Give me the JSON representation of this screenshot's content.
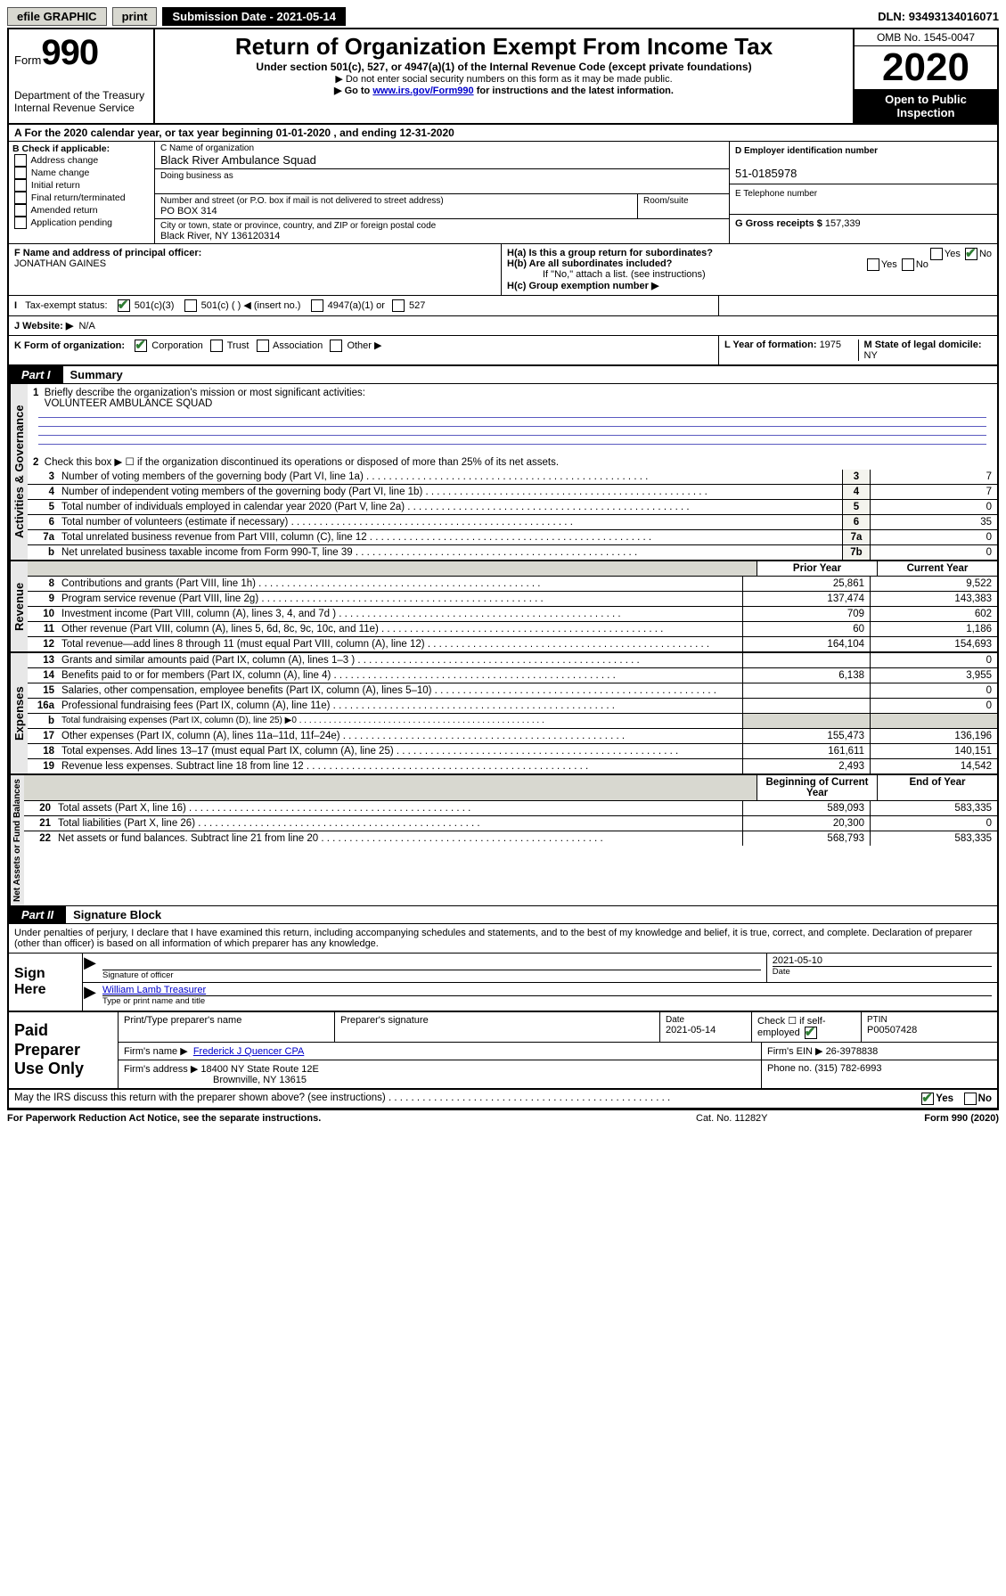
{
  "topbar": {
    "efile": "efile GRAPHIC",
    "print": "print",
    "submission_label": "Submission Date - ",
    "submission_date": "2021-05-14",
    "dln_label": "DLN: ",
    "dln": "93493134016071"
  },
  "header": {
    "form_label": "Form",
    "form_number": "990",
    "dept1": "Department of the Treasury",
    "dept2": "Internal Revenue Service",
    "title": "Return of Organization Exempt From Income Tax",
    "subtitle": "Under section 501(c), 527, or 4947(a)(1) of the Internal Revenue Code (except private foundations)",
    "warn1": "▶ Do not enter social security numbers on this form as it may be made public.",
    "warn2_pre": "▶ Go to ",
    "warn2_link": "www.irs.gov/Form990",
    "warn2_post": " for instructions and the latest information.",
    "omb": "OMB No. 1545-0047",
    "year": "2020",
    "insp1": "Open to Public",
    "insp2": "Inspection"
  },
  "calendar": {
    "text_a": "A For the 2020 calendar year, or tax year beginning ",
    "begin": "01-01-2020",
    "text_b": " , and ending ",
    "end": "12-31-2020"
  },
  "box_b": {
    "title": "B Check if applicable:",
    "opts": [
      "Address change",
      "Name change",
      "Initial return",
      "Final return/terminated",
      "Amended return",
      "Application pending"
    ]
  },
  "box_c": {
    "name_label": "C Name of organization",
    "name": "Black River Ambulance Squad",
    "dba_label": "Doing business as",
    "addr_label": "Number and street (or P.O. box if mail is not delivered to street address)",
    "room_label": "Room/suite",
    "addr": "PO BOX 314",
    "city_label": "City or town, state or province, country, and ZIP or foreign postal code",
    "city": "Black River, NY  136120314"
  },
  "box_d": {
    "label": "D Employer identification number",
    "value": "51-0185978"
  },
  "box_e": {
    "label": "E Telephone number",
    "value": ""
  },
  "box_g": {
    "label": "G Gross receipts $ ",
    "value": "157,339"
  },
  "box_f": {
    "label": "F Name and address of principal officer:",
    "name": "JONATHAN GAINES"
  },
  "box_h": {
    "ha": "H(a)  Is this a group return for subordinates?",
    "hb": "H(b)  Are all subordinates included?",
    "hb_note": "If \"No,\" attach a list. (see instructions)",
    "hc": "H(c)  Group exemption number ▶",
    "yes": "Yes",
    "no": "No"
  },
  "box_i": {
    "label": "Tax-exempt status:",
    "o1": "501(c)(3)",
    "o2": "501(c) (  ) ◀ (insert no.)",
    "o3": "4947(a)(1) or",
    "o4": "527"
  },
  "box_j": {
    "label": "J   Website: ▶",
    "value": "N/A"
  },
  "box_k": {
    "label": "K Form of organization:",
    "o1": "Corporation",
    "o2": "Trust",
    "o3": "Association",
    "o4": "Other ▶"
  },
  "box_l": {
    "label": "L Year of formation: ",
    "value": "1975"
  },
  "box_m": {
    "label": "M State of legal domicile: ",
    "value": "NY"
  },
  "part1": {
    "tab": "Part I",
    "title": "Summary",
    "sections": {
      "gov": "Activities & Governance",
      "rev": "Revenue",
      "exp": "Expenses",
      "net": "Net Assets or Fund Balances"
    },
    "q1_label": "Briefly describe the organization's mission or most significant activities:",
    "q1_value": "VOLUNTEER AMBULANCE SQUAD",
    "q2": "Check this box ▶ ☐  if the organization discontinued its operations or disposed of more than 25% of its net assets.",
    "lines_gov": [
      {
        "n": "3",
        "t": "Number of voting members of the governing body (Part VI, line 1a)",
        "box": "3",
        "v": "7"
      },
      {
        "n": "4",
        "t": "Number of independent voting members of the governing body (Part VI, line 1b)",
        "box": "4",
        "v": "7"
      },
      {
        "n": "5",
        "t": "Total number of individuals employed in calendar year 2020 (Part V, line 2a)",
        "box": "5",
        "v": "0"
      },
      {
        "n": "6",
        "t": "Total number of volunteers (estimate if necessary)",
        "box": "6",
        "v": "35"
      },
      {
        "n": "7a",
        "t": "Total unrelated business revenue from Part VIII, column (C), line 12",
        "box": "7a",
        "v": "0"
      },
      {
        "n": "b",
        "t": "Net unrelated business taxable income from Form 990-T, line 39",
        "box": "7b",
        "v": "0"
      }
    ],
    "col_prior": "Prior Year",
    "col_current": "Current Year",
    "lines_rev": [
      {
        "n": "8",
        "t": "Contributions and grants (Part VIII, line 1h)",
        "p": "25,861",
        "c": "9,522"
      },
      {
        "n": "9",
        "t": "Program service revenue (Part VIII, line 2g)",
        "p": "137,474",
        "c": "143,383"
      },
      {
        "n": "10",
        "t": "Investment income (Part VIII, column (A), lines 3, 4, and 7d )",
        "p": "709",
        "c": "602"
      },
      {
        "n": "11",
        "t": "Other revenue (Part VIII, column (A), lines 5, 6d, 8c, 9c, 10c, and 11e)",
        "p": "60",
        "c": "1,186"
      },
      {
        "n": "12",
        "t": "Total revenue—add lines 8 through 11 (must equal Part VIII, column (A), line 12)",
        "p": "164,104",
        "c": "154,693"
      }
    ],
    "lines_exp": [
      {
        "n": "13",
        "t": "Grants and similar amounts paid (Part IX, column (A), lines 1–3 )",
        "p": "",
        "c": "0"
      },
      {
        "n": "14",
        "t": "Benefits paid to or for members (Part IX, column (A), line 4)",
        "p": "6,138",
        "c": "3,955"
      },
      {
        "n": "15",
        "t": "Salaries, other compensation, employee benefits (Part IX, column (A), lines 5–10)",
        "p": "",
        "c": "0"
      },
      {
        "n": "16a",
        "t": "Professional fundraising fees (Part IX, column (A), line 11e)",
        "p": "",
        "c": "0"
      },
      {
        "n": "b",
        "t": "Total fundraising expenses (Part IX, column (D), line 25) ▶0",
        "p": null,
        "c": null,
        "shaded": true,
        "small": true
      },
      {
        "n": "17",
        "t": "Other expenses (Part IX, column (A), lines 11a–11d, 11f–24e)",
        "p": "155,473",
        "c": "136,196"
      },
      {
        "n": "18",
        "t": "Total expenses. Add lines 13–17 (must equal Part IX, column (A), line 25)",
        "p": "161,611",
        "c": "140,151"
      },
      {
        "n": "19",
        "t": "Revenue less expenses. Subtract line 18 from line 12",
        "p": "2,493",
        "c": "14,542"
      }
    ],
    "col_begin": "Beginning of Current Year",
    "col_end": "End of Year",
    "lines_net": [
      {
        "n": "20",
        "t": "Total assets (Part X, line 16)",
        "p": "589,093",
        "c": "583,335"
      },
      {
        "n": "21",
        "t": "Total liabilities (Part X, line 26)",
        "p": "20,300",
        "c": "0"
      },
      {
        "n": "22",
        "t": "Net assets or fund balances. Subtract line 21 from line 20",
        "p": "568,793",
        "c": "583,335"
      }
    ]
  },
  "part2": {
    "tab": "Part II",
    "title": "Signature Block",
    "decl": "Under penalties of perjury, I declare that I have examined this return, including accompanying schedules and statements, and to the best of my knowledge and belief, it is true, correct, and complete. Declaration of preparer (other than officer) is based on all information of which preparer has any knowledge."
  },
  "sign": {
    "here": "Sign Here",
    "sig_label": "Signature of officer",
    "date_label": "Date",
    "date": "2021-05-10",
    "name": "William Lamb Treasurer",
    "name_label": "Type or print name and title"
  },
  "paid": {
    "left": "Paid Preparer Use Only",
    "h1": "Print/Type preparer's name",
    "h2": "Preparer's signature",
    "h3_label": "Date",
    "h3": "2021-05-14",
    "h4_label": "Check ☐ if self-employed",
    "h5_label": "PTIN",
    "h5": "P00507428",
    "firm_name_label": "Firm's name    ▶",
    "firm_name": "Frederick J Quencer CPA",
    "firm_ein_label": "Firm's EIN ▶",
    "firm_ein": "26-3978838",
    "firm_addr_label": "Firm's address ▶",
    "firm_addr1": "18400 NY State Route 12E",
    "firm_addr2": "Brownville, NY  13615",
    "phone_label": "Phone no. ",
    "phone": "(315) 782-6993"
  },
  "discuss": {
    "text": "May the IRS discuss this return with the preparer shown above? (see instructions)",
    "yes": "Yes",
    "no": "No"
  },
  "footer": {
    "left": "For Paperwork Reduction Act Notice, see the separate instructions.",
    "mid": "Cat. No. 11282Y",
    "right": "Form 990 (2020)"
  }
}
